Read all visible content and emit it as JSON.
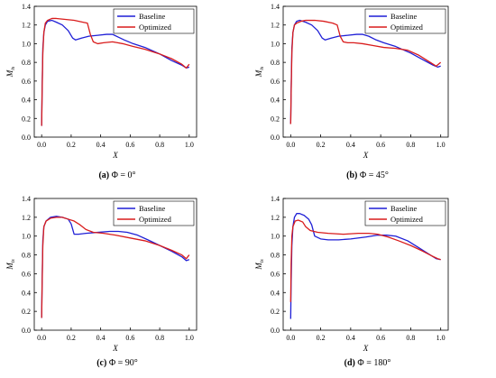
{
  "chart_data": [
    {
      "type": "line",
      "caption": {
        "label": "(a)",
        "text": "Φ = 0°"
      },
      "xlabel": "X",
      "ylabel": {
        "main": "M",
        "sub": "is"
      },
      "xlim": [
        -0.05,
        1.05
      ],
      "ylim": [
        0,
        1.4
      ],
      "xticks": [
        "0.0",
        "0.2",
        "0.4",
        "0.6",
        "0.8",
        "1.0"
      ],
      "yticks": [
        "0.0",
        "0.2",
        "0.4",
        "0.6",
        "0.8",
        "1.0",
        "1.2",
        "1.4"
      ],
      "legend_position": "top-right",
      "series": [
        {
          "name": "Baseline",
          "color": "#1f1fd6",
          "points": [
            [
              0.0,
              0.12
            ],
            [
              0.003,
              0.5
            ],
            [
              0.008,
              0.95
            ],
            [
              0.015,
              1.12
            ],
            [
              0.025,
              1.2
            ],
            [
              0.04,
              1.24
            ],
            [
              0.07,
              1.25
            ],
            [
              0.1,
              1.23
            ],
            [
              0.14,
              1.2
            ],
            [
              0.18,
              1.14
            ],
            [
              0.21,
              1.06
            ],
            [
              0.23,
              1.04
            ],
            [
              0.27,
              1.06
            ],
            [
              0.32,
              1.08
            ],
            [
              0.38,
              1.09
            ],
            [
              0.44,
              1.1
            ],
            [
              0.48,
              1.1
            ],
            [
              0.52,
              1.07
            ],
            [
              0.56,
              1.04
            ],
            [
              0.62,
              1.0
            ],
            [
              0.7,
              0.96
            ],
            [
              0.8,
              0.89
            ],
            [
              0.88,
              0.82
            ],
            [
              0.95,
              0.77
            ],
            [
              0.98,
              0.74
            ],
            [
              1.0,
              0.75
            ]
          ]
        },
        {
          "name": "Optimized",
          "color": "#d91c1c",
          "points": [
            [
              0.0,
              0.12
            ],
            [
              0.003,
              0.45
            ],
            [
              0.008,
              0.9
            ],
            [
              0.015,
              1.12
            ],
            [
              0.025,
              1.22
            ],
            [
              0.04,
              1.25
            ],
            [
              0.07,
              1.27
            ],
            [
              0.1,
              1.27
            ],
            [
              0.16,
              1.26
            ],
            [
              0.22,
              1.25
            ],
            [
              0.28,
              1.23
            ],
            [
              0.31,
              1.22
            ],
            [
              0.33,
              1.1
            ],
            [
              0.35,
              1.02
            ],
            [
              0.38,
              1.0
            ],
            [
              0.42,
              1.01
            ],
            [
              0.48,
              1.02
            ],
            [
              0.55,
              1.0
            ],
            [
              0.62,
              0.97
            ],
            [
              0.7,
              0.94
            ],
            [
              0.8,
              0.89
            ],
            [
              0.88,
              0.84
            ],
            [
              0.95,
              0.78
            ],
            [
              0.98,
              0.74
            ],
            [
              1.0,
              0.78
            ]
          ]
        }
      ]
    },
    {
      "type": "line",
      "caption": {
        "label": "(b)",
        "text": "Φ = 45°"
      },
      "xlabel": "X",
      "ylabel": {
        "main": "M",
        "sub": "is"
      },
      "xlim": [
        -0.05,
        1.05
      ],
      "ylim": [
        0,
        1.4
      ],
      "xticks": [
        "0.0",
        "0.2",
        "0.4",
        "0.6",
        "0.8",
        "1.0"
      ],
      "yticks": [
        "0.0",
        "0.2",
        "0.4",
        "0.6",
        "0.8",
        "1.0",
        "1.2",
        "1.4"
      ],
      "legend_position": "top-right",
      "series": [
        {
          "name": "Baseline",
          "color": "#1f1fd6",
          "points": [
            [
              0.0,
              0.14
            ],
            [
              0.003,
              0.5
            ],
            [
              0.008,
              0.95
            ],
            [
              0.015,
              1.12
            ],
            [
              0.025,
              1.2
            ],
            [
              0.04,
              1.24
            ],
            [
              0.06,
              1.25
            ],
            [
              0.1,
              1.23
            ],
            [
              0.14,
              1.2
            ],
            [
              0.18,
              1.14
            ],
            [
              0.21,
              1.06
            ],
            [
              0.23,
              1.04
            ],
            [
              0.27,
              1.06
            ],
            [
              0.32,
              1.08
            ],
            [
              0.38,
              1.09
            ],
            [
              0.44,
              1.1
            ],
            [
              0.48,
              1.1
            ],
            [
              0.52,
              1.08
            ],
            [
              0.57,
              1.04
            ],
            [
              0.62,
              1.01
            ],
            [
              0.7,
              0.97
            ],
            [
              0.8,
              0.9
            ],
            [
              0.88,
              0.83
            ],
            [
              0.95,
              0.77
            ],
            [
              0.98,
              0.75
            ],
            [
              1.0,
              0.76
            ]
          ]
        },
        {
          "name": "Optimized",
          "color": "#d91c1c",
          "points": [
            [
              0.0,
              0.14
            ],
            [
              0.003,
              0.45
            ],
            [
              0.008,
              0.9
            ],
            [
              0.015,
              1.12
            ],
            [
              0.025,
              1.2
            ],
            [
              0.04,
              1.22
            ],
            [
              0.07,
              1.24
            ],
            [
              0.1,
              1.25
            ],
            [
              0.16,
              1.25
            ],
            [
              0.22,
              1.24
            ],
            [
              0.28,
              1.22
            ],
            [
              0.31,
              1.2
            ],
            [
              0.33,
              1.08
            ],
            [
              0.35,
              1.02
            ],
            [
              0.38,
              1.01
            ],
            [
              0.42,
              1.01
            ],
            [
              0.48,
              1.0
            ],
            [
              0.55,
              0.98
            ],
            [
              0.62,
              0.96
            ],
            [
              0.7,
              0.95
            ],
            [
              0.78,
              0.93
            ],
            [
              0.85,
              0.88
            ],
            [
              0.92,
              0.81
            ],
            [
              0.97,
              0.76
            ],
            [
              1.0,
              0.8
            ]
          ]
        }
      ]
    },
    {
      "type": "line",
      "caption": {
        "label": "(c)",
        "text": "Φ = 90°"
      },
      "xlabel": "X",
      "ylabel": {
        "main": "M",
        "sub": "is"
      },
      "xlim": [
        -0.05,
        1.05
      ],
      "ylim": [
        0,
        1.4
      ],
      "xticks": [
        "0.0",
        "0.2",
        "0.4",
        "0.6",
        "0.8",
        "1.0"
      ],
      "yticks": [
        "0.0",
        "0.2",
        "0.4",
        "0.6",
        "0.8",
        "1.0",
        "1.2",
        "1.4"
      ],
      "legend_position": "top-right",
      "series": [
        {
          "name": "Baseline",
          "color": "#1f1fd6",
          "points": [
            [
              0.0,
              0.13
            ],
            [
              0.003,
              0.5
            ],
            [
              0.008,
              0.95
            ],
            [
              0.015,
              1.1
            ],
            [
              0.03,
              1.16
            ],
            [
              0.06,
              1.2
            ],
            [
              0.1,
              1.21
            ],
            [
              0.14,
              1.2
            ],
            [
              0.18,
              1.18
            ],
            [
              0.2,
              1.13
            ],
            [
              0.22,
              1.02
            ],
            [
              0.25,
              1.02
            ],
            [
              0.3,
              1.03
            ],
            [
              0.38,
              1.04
            ],
            [
              0.46,
              1.05
            ],
            [
              0.52,
              1.05
            ],
            [
              0.58,
              1.04
            ],
            [
              0.65,
              1.01
            ],
            [
              0.72,
              0.96
            ],
            [
              0.8,
              0.9
            ],
            [
              0.88,
              0.84
            ],
            [
              0.95,
              0.78
            ],
            [
              0.98,
              0.74
            ],
            [
              1.0,
              0.75
            ]
          ]
        },
        {
          "name": "Optimized",
          "color": "#d91c1c",
          "points": [
            [
              0.0,
              0.13
            ],
            [
              0.003,
              0.45
            ],
            [
              0.008,
              0.9
            ],
            [
              0.015,
              1.1
            ],
            [
              0.03,
              1.16
            ],
            [
              0.06,
              1.19
            ],
            [
              0.1,
              1.2
            ],
            [
              0.14,
              1.2
            ],
            [
              0.18,
              1.18
            ],
            [
              0.22,
              1.16
            ],
            [
              0.26,
              1.12
            ],
            [
              0.3,
              1.07
            ],
            [
              0.35,
              1.04
            ],
            [
              0.42,
              1.03
            ],
            [
              0.5,
              1.01
            ],
            [
              0.6,
              0.98
            ],
            [
              0.7,
              0.95
            ],
            [
              0.8,
              0.9
            ],
            [
              0.88,
              0.85
            ],
            [
              0.95,
              0.8
            ],
            [
              0.98,
              0.76
            ],
            [
              1.0,
              0.8
            ]
          ]
        }
      ]
    },
    {
      "type": "line",
      "caption": {
        "label": "(d)",
        "text": "Φ = 180°"
      },
      "xlabel": "X",
      "ylabel": {
        "main": "M",
        "sub": "is"
      },
      "xlim": [
        -0.05,
        1.05
      ],
      "ylim": [
        0,
        1.4
      ],
      "xticks": [
        "0.0",
        "0.2",
        "0.4",
        "0.6",
        "0.8",
        "1.0"
      ],
      "yticks": [
        "0.0",
        "0.2",
        "0.4",
        "0.6",
        "0.8",
        "1.0",
        "1.2",
        "1.4"
      ],
      "legend_position": "top-right",
      "series": [
        {
          "name": "Baseline",
          "color": "#1f1fd6",
          "points": [
            [
              0.0,
              0.12
            ],
            [
              0.003,
              0.5
            ],
            [
              0.008,
              0.9
            ],
            [
              0.015,
              1.1
            ],
            [
              0.025,
              1.2
            ],
            [
              0.04,
              1.24
            ],
            [
              0.06,
              1.24
            ],
            [
              0.09,
              1.22
            ],
            [
              0.12,
              1.18
            ],
            [
              0.14,
              1.12
            ],
            [
              0.16,
              1.0
            ],
            [
              0.2,
              0.97
            ],
            [
              0.25,
              0.96
            ],
            [
              0.32,
              0.96
            ],
            [
              0.4,
              0.97
            ],
            [
              0.5,
              0.99
            ],
            [
              0.58,
              1.01
            ],
            [
              0.64,
              1.01
            ],
            [
              0.7,
              1.0
            ],
            [
              0.78,
              0.95
            ],
            [
              0.85,
              0.88
            ],
            [
              0.92,
              0.81
            ],
            [
              0.97,
              0.76
            ],
            [
              1.0,
              0.75
            ]
          ]
        },
        {
          "name": "Optimized",
          "color": "#d91c1c",
          "points": [
            [
              0.0,
              0.3
            ],
            [
              0.003,
              0.7
            ],
            [
              0.008,
              1.0
            ],
            [
              0.015,
              1.1
            ],
            [
              0.03,
              1.16
            ],
            [
              0.05,
              1.17
            ],
            [
              0.08,
              1.15
            ],
            [
              0.1,
              1.1
            ],
            [
              0.13,
              1.06
            ],
            [
              0.18,
              1.04
            ],
            [
              0.25,
              1.03
            ],
            [
              0.35,
              1.02
            ],
            [
              0.45,
              1.03
            ],
            [
              0.52,
              1.03
            ],
            [
              0.58,
              1.02
            ],
            [
              0.65,
              0.99
            ],
            [
              0.72,
              0.95
            ],
            [
              0.8,
              0.9
            ],
            [
              0.88,
              0.84
            ],
            [
              0.94,
              0.79
            ],
            [
              0.98,
              0.76
            ],
            [
              1.0,
              0.75
            ]
          ]
        }
      ]
    }
  ]
}
